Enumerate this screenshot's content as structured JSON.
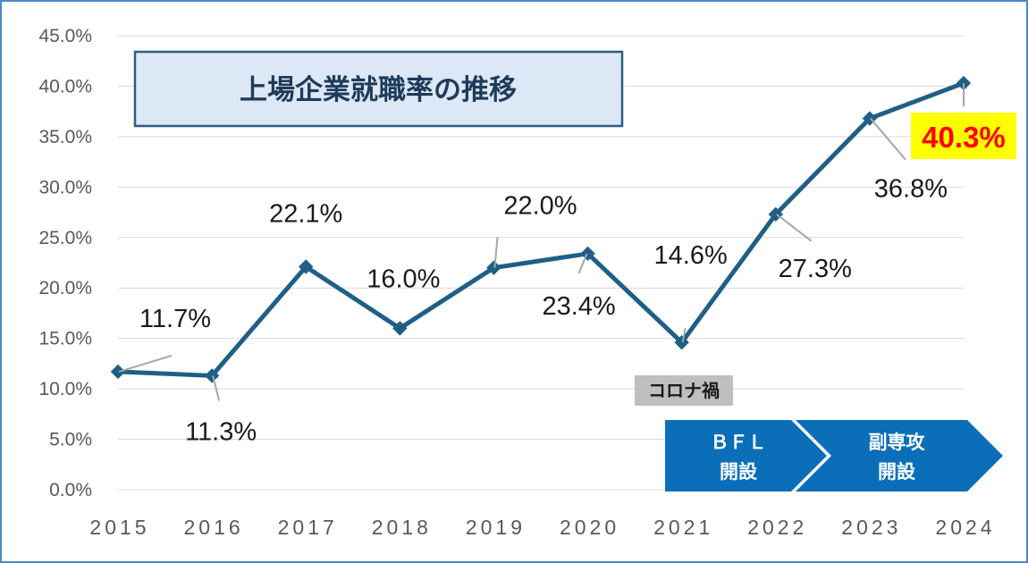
{
  "chart_data": {
    "type": "line",
    "title": "上場企業就職率の推移",
    "categories": [
      "2015",
      "2016",
      "2017",
      "2018",
      "2019",
      "2020",
      "2021",
      "2022",
      "2023",
      "2024"
    ],
    "values": [
      11.7,
      11.3,
      22.1,
      16.0,
      22.0,
      23.4,
      14.6,
      27.3,
      36.8,
      40.3
    ],
    "data_labels": [
      "11.7%",
      "11.3%",
      "22.1%",
      "16.0%",
      "22.0%",
      "23.4%",
      "14.6%",
      "27.3%",
      "36.8%",
      "40.3%"
    ],
    "ylim": [
      0,
      45
    ],
    "yticks": [
      0,
      5,
      10,
      15,
      20,
      25,
      30,
      35,
      40,
      45
    ],
    "ytick_labels": [
      "0.0%",
      "5.0%",
      "10.0%",
      "15.0%",
      "20.0%",
      "25.0%",
      "30.0%",
      "35.0%",
      "40.0%",
      "45.0%"
    ],
    "grid": true,
    "line_color": "#1f5f86",
    "highlight": {
      "label": "40.3%",
      "text_color": "#ff0000",
      "background": "#ffff00"
    },
    "annotations": {
      "covid": "コロナ禍",
      "milestones": [
        {
          "line1": "ＢＦＬ",
          "line2": "開設"
        },
        {
          "line1": "副専攻",
          "line2": "開設"
        }
      ],
      "milestone_color": "#0a6fb8"
    }
  }
}
